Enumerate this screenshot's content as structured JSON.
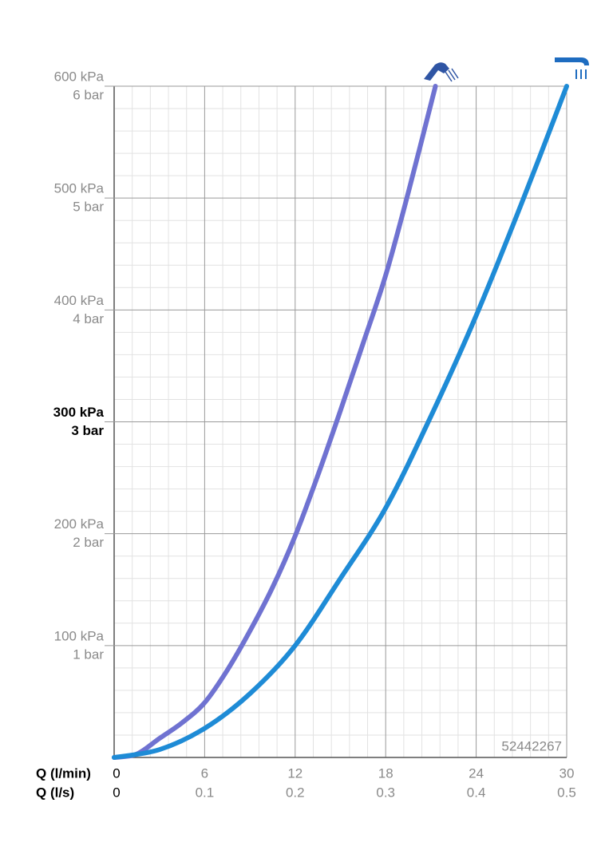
{
  "chart_data": {
    "type": "line",
    "xlabel": "Q (l/min)",
    "x2label": "Q (l/s)",
    "xlim": [
      0,
      30
    ],
    "xticks": [
      0,
      6,
      12,
      18,
      24,
      30
    ],
    "x2lim": [
      0,
      0.5
    ],
    "x2ticks": [
      0,
      0.1,
      0.2,
      0.3,
      0.4,
      0.5
    ],
    "ylim": [
      0,
      600
    ],
    "yticks": [
      {
        "value": 100,
        "label": "100 kPa"
      },
      {
        "value": 200,
        "label": "200 kPa"
      },
      {
        "value": 300,
        "label": "300 kPa"
      },
      {
        "value": 400,
        "label": "400 kPa"
      },
      {
        "value": 500,
        "label": "500 kPa"
      },
      {
        "value": 600,
        "label": "600 kPa"
      }
    ],
    "y2lim": [
      0,
      6
    ],
    "y2ticks": [
      {
        "value": 1,
        "label": "1 bar"
      },
      {
        "value": 2,
        "label": "2 bar"
      },
      {
        "value": 3,
        "label": "3 bar"
      },
      {
        "value": 4,
        "label": "4 bar"
      },
      {
        "value": 5,
        "label": "5 bar"
      },
      {
        "value": 6,
        "label": "6 bar"
      }
    ],
    "bold_ytick": 300,
    "grid": true,
    "minor_grid": 5,
    "annotation": "52442267",
    "series": [
      {
        "color": "#6f72d1",
        "x": [
          0,
          1.5,
          3,
          4.5,
          6,
          7.5,
          9,
          10.5,
          12,
          13.5,
          15,
          16.5,
          18,
          19.5,
          21.3
        ],
        "values": [
          0,
          3,
          17,
          31,
          49,
          78,
          113,
          152,
          198,
          252,
          310,
          370,
          431,
          505,
          600
        ]
      },
      {
        "color": "#1e8bd6",
        "x": [
          0,
          3,
          6,
          9,
          12,
          15,
          18,
          21,
          24,
          27,
          30
        ],
        "values": [
          0,
          7,
          26,
          57,
          100,
          160,
          223,
          305,
          395,
          495,
          600
        ]
      }
    ]
  }
}
